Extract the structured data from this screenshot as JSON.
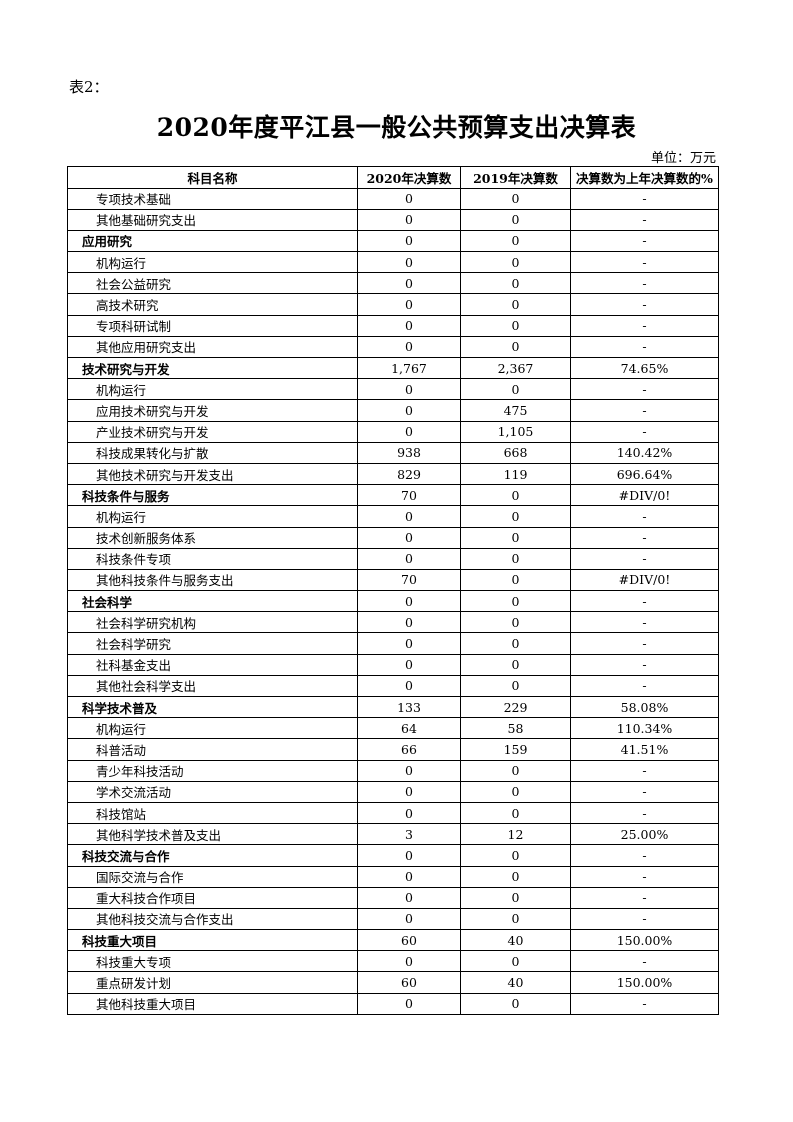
{
  "label": "表2：",
  "title": "2020年度平江县一般公共预算支出决算表",
  "unit": "单位：万元",
  "columns": [
    "科目名称",
    "2020年决算数",
    "2019年决算数",
    "决算数为上年决算数的%"
  ],
  "rows": [
    {
      "name": "专项技术基础",
      "category": false,
      "y2020": "0",
      "y2019": "0",
      "pct": "-"
    },
    {
      "name": "其他基础研究支出",
      "category": false,
      "y2020": "0",
      "y2019": "0",
      "pct": "-"
    },
    {
      "name": "应用研究",
      "category": true,
      "y2020": "0",
      "y2019": "0",
      "pct": "-"
    },
    {
      "name": "机构运行",
      "category": false,
      "y2020": "0",
      "y2019": "0",
      "pct": "-"
    },
    {
      "name": "社会公益研究",
      "category": false,
      "y2020": "0",
      "y2019": "0",
      "pct": "-"
    },
    {
      "name": "高技术研究",
      "category": false,
      "y2020": "0",
      "y2019": "0",
      "pct": "-"
    },
    {
      "name": "专项科研试制",
      "category": false,
      "y2020": "0",
      "y2019": "0",
      "pct": "-"
    },
    {
      "name": "其他应用研究支出",
      "category": false,
      "y2020": "0",
      "y2019": "0",
      "pct": "-"
    },
    {
      "name": "技术研究与开发",
      "category": true,
      "y2020": "1,767",
      "y2019": "2,367",
      "pct": "74.65%"
    },
    {
      "name": "机构运行",
      "category": false,
      "y2020": "0",
      "y2019": "0",
      "pct": "-"
    },
    {
      "name": "应用技术研究与开发",
      "category": false,
      "y2020": "0",
      "y2019": "475",
      "pct": "-"
    },
    {
      "name": "产业技术研究与开发",
      "category": false,
      "y2020": "0",
      "y2019": "1,105",
      "pct": "-"
    },
    {
      "name": "科技成果转化与扩散",
      "category": false,
      "y2020": "938",
      "y2019": "668",
      "pct": "140.42%"
    },
    {
      "name": "其他技术研究与开发支出",
      "category": false,
      "y2020": "829",
      "y2019": "119",
      "pct": "696.64%"
    },
    {
      "name": "科技条件与服务",
      "category": true,
      "y2020": "70",
      "y2019": "0",
      "pct": "#DIV/0!"
    },
    {
      "name": "机构运行",
      "category": false,
      "y2020": "0",
      "y2019": "0",
      "pct": "-"
    },
    {
      "name": "技术创新服务体系",
      "category": false,
      "y2020": "0",
      "y2019": "0",
      "pct": "-"
    },
    {
      "name": "科技条件专项",
      "category": false,
      "y2020": "0",
      "y2019": "0",
      "pct": "-"
    },
    {
      "name": "其他科技条件与服务支出",
      "category": false,
      "y2020": "70",
      "y2019": "0",
      "pct": "#DIV/0!"
    },
    {
      "name": "社会科学",
      "category": true,
      "y2020": "0",
      "y2019": "0",
      "pct": "-"
    },
    {
      "name": "社会科学研究机构",
      "category": false,
      "y2020": "0",
      "y2019": "0",
      "pct": "-"
    },
    {
      "name": "社会科学研究",
      "category": false,
      "y2020": "0",
      "y2019": "0",
      "pct": "-"
    },
    {
      "name": "社科基金支出",
      "category": false,
      "y2020": "0",
      "y2019": "0",
      "pct": "-"
    },
    {
      "name": "其他社会科学支出",
      "category": false,
      "y2020": "0",
      "y2019": "0",
      "pct": "-"
    },
    {
      "name": "科学技术普及",
      "category": true,
      "y2020": "133",
      "y2019": "229",
      "pct": "58.08%"
    },
    {
      "name": "机构运行",
      "category": false,
      "y2020": "64",
      "y2019": "58",
      "pct": "110.34%"
    },
    {
      "name": "科普活动",
      "category": false,
      "y2020": "66",
      "y2019": "159",
      "pct": "41.51%"
    },
    {
      "name": "青少年科技活动",
      "category": false,
      "y2020": "0",
      "y2019": "0",
      "pct": "-"
    },
    {
      "name": "学术交流活动",
      "category": false,
      "y2020": "0",
      "y2019": "0",
      "pct": "-"
    },
    {
      "name": "科技馆站",
      "category": false,
      "y2020": "0",
      "y2019": "0",
      "pct": "-"
    },
    {
      "name": "其他科学技术普及支出",
      "category": false,
      "y2020": "3",
      "y2019": "12",
      "pct": "25.00%"
    },
    {
      "name": "科技交流与合作",
      "category": true,
      "y2020": "0",
      "y2019": "0",
      "pct": "-"
    },
    {
      "name": "国际交流与合作",
      "category": false,
      "y2020": "0",
      "y2019": "0",
      "pct": "-"
    },
    {
      "name": "重大科技合作项目",
      "category": false,
      "y2020": "0",
      "y2019": "0",
      "pct": "-"
    },
    {
      "name": "其他科技交流与合作支出",
      "category": false,
      "y2020": "0",
      "y2019": "0",
      "pct": "-"
    },
    {
      "name": "科技重大项目",
      "category": true,
      "y2020": "60",
      "y2019": "40",
      "pct": "150.00%"
    },
    {
      "name": "科技重大专项",
      "category": false,
      "y2020": "0",
      "y2019": "0",
      "pct": "-"
    },
    {
      "name": "重点研发计划",
      "category": false,
      "y2020": "60",
      "y2019": "40",
      "pct": "150.00%"
    },
    {
      "name": "其他科技重大项目",
      "category": false,
      "y2020": "0",
      "y2019": "0",
      "pct": "-"
    }
  ]
}
